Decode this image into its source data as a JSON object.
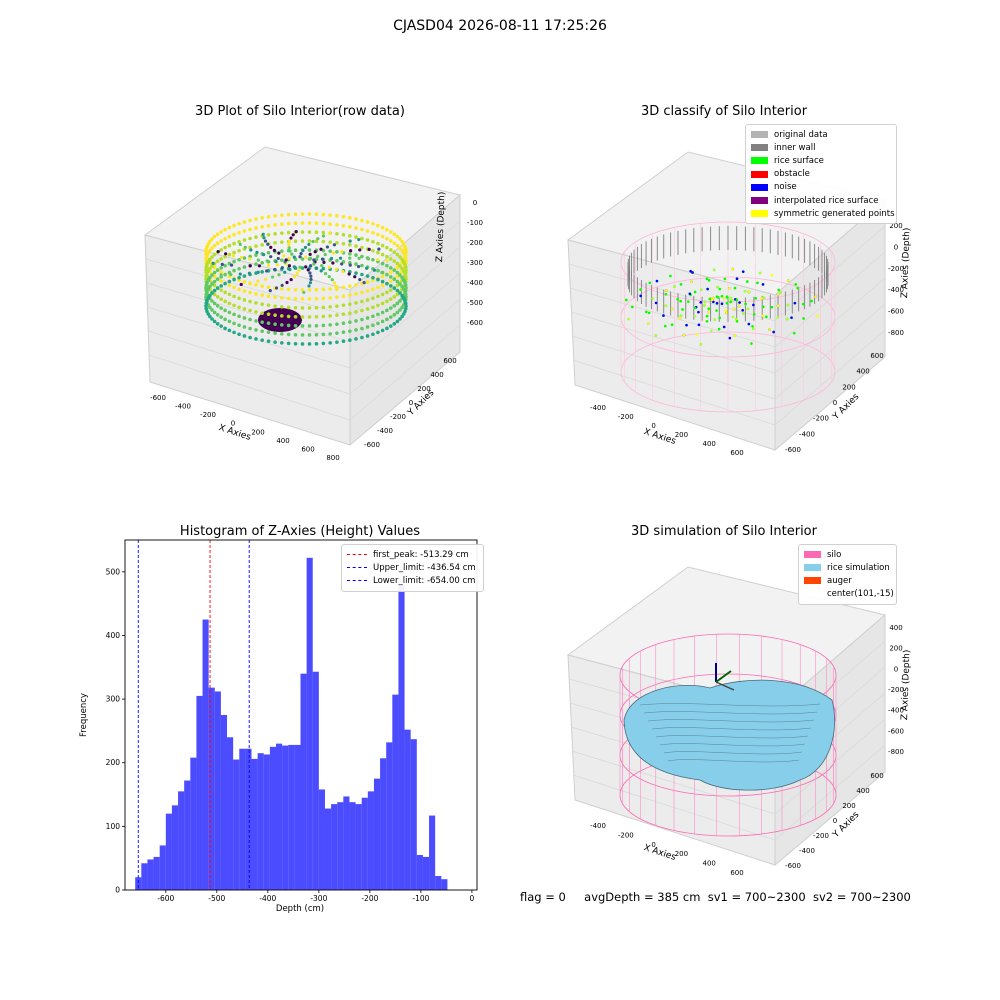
{
  "suptitle": "CJASD04 2026-08-11 17:25:26",
  "panels": {
    "raw": {
      "title": "3D Plot of Silo Interior(row data)",
      "xlabel": "X Axies",
      "ylabel": "Y Axies",
      "zlabel": "Z Axies (Depth)",
      "xticks": [
        "-600",
        "-400",
        "-200",
        "0",
        "200",
        "400",
        "600",
        "800"
      ],
      "yticks": [
        "-600",
        "-400",
        "-200",
        "0",
        "200",
        "400",
        "600"
      ],
      "zticks": [
        "0",
        "-100",
        "-200",
        "-300",
        "-400",
        "-500",
        "-600"
      ]
    },
    "classify": {
      "title": "3D classify of Silo Interior",
      "xlabel": "X Axies",
      "ylabel": "Y Axies",
      "zlabel": "Z Axies (Depth)",
      "xticks": [
        "-400",
        "-200",
        "0",
        "200",
        "400",
        "600"
      ],
      "yticks": [
        "-600",
        "-400",
        "-200",
        "0",
        "200",
        "400",
        "600"
      ],
      "zticks": [
        "200",
        "0",
        "-200",
        "-400",
        "-600",
        "-800"
      ],
      "legend": [
        {
          "label": "original data",
          "color": "#b3b3b3"
        },
        {
          "label": "inner wall",
          "color": "#808080"
        },
        {
          "label": "rice surface",
          "color": "#00ff00"
        },
        {
          "label": "obstacle",
          "color": "#ff0000"
        },
        {
          "label": "noise",
          "color": "#0000ff"
        },
        {
          "label": "interpolated rice surface",
          "color": "#800080"
        },
        {
          "label": "symmetric generated points",
          "color": "#ffff00"
        }
      ]
    },
    "simulation": {
      "title": "3D simulation of Silo Interior",
      "xlabel": "X Axies",
      "ylabel": "Y Axies",
      "zlabel": "Z Axies (Depth)",
      "xticks": [
        "-400",
        "-200",
        "0",
        "200",
        "400",
        "600"
      ],
      "yticks": [
        "-600",
        "-400",
        "-200",
        "0",
        "200",
        "400",
        "600"
      ],
      "zticks": [
        "400",
        "200",
        "0",
        "-200",
        "-400",
        "-600",
        "-800"
      ],
      "legend": [
        {
          "label": "silo",
          "color": "#ff69b4"
        },
        {
          "label": "rice simulation",
          "color": "#87ceeb"
        },
        {
          "label": "auger",
          "color": "#ff4500"
        },
        {
          "label": "center(101,-15)",
          "color": ""
        }
      ]
    }
  },
  "chart_data": {
    "type": "bar",
    "title": "Histogram of Z-Axies (Height) Values",
    "xlabel": "Depth (cm)",
    "ylabel": "Frequency",
    "xlim": [
      -680,
      10
    ],
    "ylim": [
      0,
      550
    ],
    "xticks": [
      -600,
      -500,
      -400,
      -300,
      -200,
      -100,
      0
    ],
    "yticks": [
      0,
      100,
      200,
      300,
      400,
      500
    ],
    "bin_start": -660,
    "bin_width": 12,
    "values": [
      20,
      42,
      48,
      52,
      70,
      120,
      133,
      155,
      172,
      208,
      305,
      425,
      318,
      312,
      275,
      240,
      205,
      222,
      222,
      206,
      215,
      213,
      225,
      230,
      227,
      228,
      228,
      340,
      522,
      343,
      158,
      128,
      135,
      138,
      147,
      138,
      135,
      145,
      155,
      175,
      207,
      232,
      307,
      478,
      252,
      237,
      55,
      52,
      117,
      22,
      17
    ],
    "bar_color": "#0000ff",
    "bar_opacity": 0.7,
    "vlines": [
      {
        "label": "first_peak: -513.29 cm",
        "value": -513.29,
        "color": "#ff0000"
      },
      {
        "label": "Upper_limit: -436.54 cm",
        "value": -436.54,
        "color": "#0000ff"
      },
      {
        "label": "Lower_limit: -654.00 cm",
        "value": -654.0,
        "color": "#0000ff"
      }
    ],
    "legend_position": "top-right"
  },
  "status": {
    "flag": "flag = 0",
    "avg_depth": "avgDepth = 385 cm",
    "sv1": "sv1 = 700~2300",
    "sv2": "sv2 = 700~2300"
  }
}
